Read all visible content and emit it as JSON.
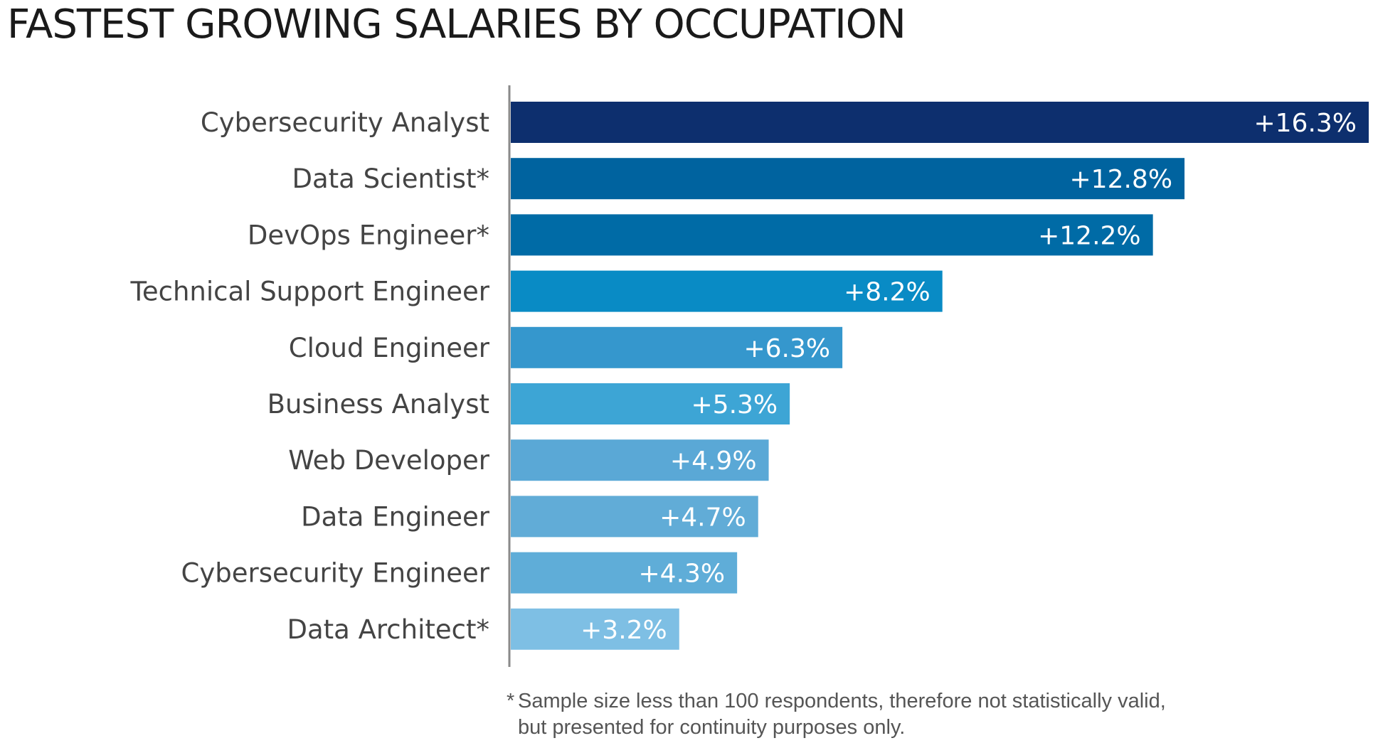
{
  "chart_data": {
    "type": "bar",
    "orientation": "horizontal",
    "title": "FASTEST GROWING SALARIES BY OCCUPATION",
    "xlabel": "",
    "ylabel": "",
    "xlim": [
      0,
      16.3
    ],
    "grid": false,
    "categories": [
      "Cybersecurity Analyst",
      "Data Scientist*",
      "DevOps Engineer*",
      "Technical Support Engineer",
      "Cloud Engineer",
      "Business Analyst",
      "Web Developer",
      "Data Engineer",
      "Cybersecurity Engineer",
      "Data Architect*"
    ],
    "values": [
      16.3,
      12.8,
      12.2,
      8.2,
      6.3,
      5.3,
      4.9,
      4.7,
      4.3,
      3.2
    ],
    "value_labels": [
      "+16.3%",
      "+12.8%",
      "+12.2%",
      "+8.2%",
      "+6.3%",
      "+5.3%",
      "+4.9%",
      "+4.7%",
      "+4.3%",
      "+3.2%"
    ],
    "colors": [
      "#0d2f6e",
      "#00639f",
      "#006ba6",
      "#098bc5",
      "#3597cd",
      "#3da5d5",
      "#5aa8d6",
      "#61acd7",
      "#5fadd8",
      "#7ebfe4"
    ],
    "footnote": {
      "mark": "*",
      "lines": [
        "Sample size less than 100 respondents, therefore not statistically valid,",
        "but presented for continuity purposes only."
      ]
    }
  }
}
